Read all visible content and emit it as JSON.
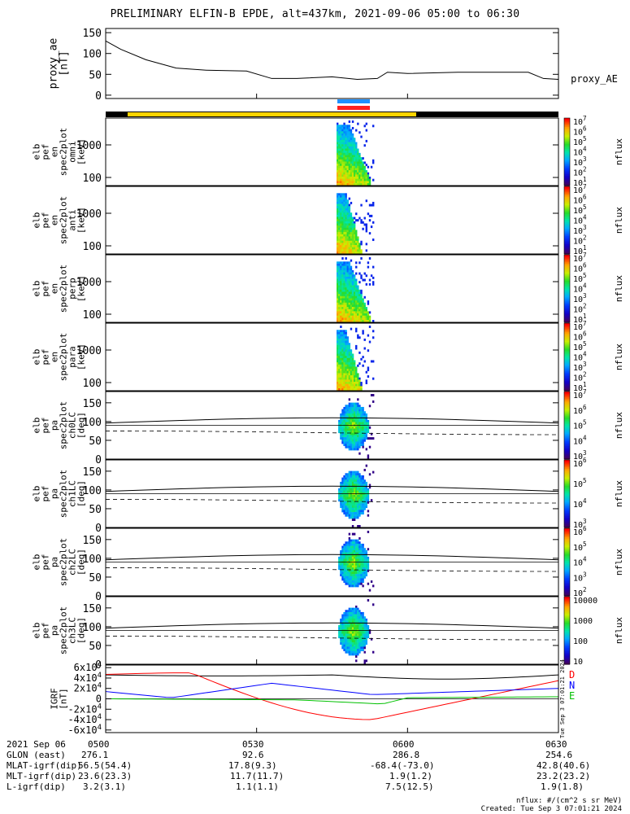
{
  "title": "PRELIMINARY ELFIN-B EPDE, alt=437km, 2021-09-06 05:00 to 06:30",
  "chart_data": [
    {
      "type": "line",
      "panel": "proxy_ae",
      "ylabel": [
        "proxy_ae",
        "[nT]"
      ],
      "yticks": [
        0,
        50,
        100,
        150
      ],
      "ylim": [
        -8,
        160
      ],
      "series_label": "proxy_AE",
      "x_minutes": [
        0,
        3,
        8,
        14,
        20,
        28,
        33,
        38,
        45,
        50,
        54,
        56,
        60,
        70,
        80,
        84,
        87,
        90
      ],
      "values": [
        130,
        110,
        85,
        65,
        60,
        58,
        40,
        40,
        44,
        38,
        40,
        55,
        52,
        55,
        55,
        55,
        40,
        38
      ]
    },
    {
      "type": "heatmap",
      "panel": "en_spec2plot_omni",
      "ylabel": [
        "elb",
        "pef",
        "en",
        "spec2plot",
        "omni",
        "[keV]"
      ],
      "yticks": [
        "100",
        "1000"
      ],
      "cbar_label": "nflux",
      "cbar_ticks": [
        "10^1",
        "10^2",
        "10^3",
        "10^4",
        "10^5",
        "10^6",
        "10^7"
      ]
    },
    {
      "type": "heatmap",
      "panel": "en_spec2plot_anti",
      "ylabel": [
        "elb",
        "pef",
        "en",
        "spec2plot",
        "anti",
        "[keV]"
      ],
      "yticks": [
        "100",
        "1000"
      ],
      "cbar_label": "nflux",
      "cbar_ticks": [
        "10^1",
        "10^2",
        "10^3",
        "10^4",
        "10^5",
        "10^6",
        "10^7"
      ]
    },
    {
      "type": "heatmap",
      "panel": "en_spec2plot_perp",
      "ylabel": [
        "elb",
        "pef",
        "en",
        "spec2plot",
        "perp",
        "[keV]"
      ],
      "yticks": [
        "100",
        "1000"
      ],
      "cbar_label": "nflux",
      "cbar_ticks": [
        "10^1",
        "10^2",
        "10^3",
        "10^4",
        "10^5",
        "10^6",
        "10^7"
      ]
    },
    {
      "type": "heatmap",
      "panel": "en_spec2plot_para",
      "ylabel": [
        "elb",
        "pef",
        "en",
        "spec2plot",
        "para",
        "[keV]"
      ],
      "yticks": [
        "100",
        "1000"
      ],
      "cbar_label": "nflux",
      "cbar_ticks": [
        "10^1",
        "10^2",
        "10^3",
        "10^4",
        "10^5",
        "10^6",
        "10^7"
      ]
    },
    {
      "type": "heatmap",
      "panel": "pa_spec2plot_ch0LC",
      "ylabel": [
        "elb",
        "pef",
        "pa",
        "spec2plot",
        "ch0LC",
        "[deg]"
      ],
      "yticks": [
        "0",
        "50",
        "100",
        "150"
      ],
      "cbar_label": "nflux",
      "cbar_ticks": [
        "10^3",
        "10^4",
        "10^5",
        "10^6",
        "10^7"
      ]
    },
    {
      "type": "heatmap",
      "panel": "pa_spec2plot_ch1LC",
      "ylabel": [
        "elb",
        "pef",
        "pa",
        "spec2plot",
        "ch1LC",
        "[deg]"
      ],
      "yticks": [
        "0",
        "50",
        "100",
        "150"
      ],
      "cbar_label": "nflux",
      "cbar_ticks": [
        "10^3",
        "10^4",
        "10^5",
        "10^6"
      ]
    },
    {
      "type": "heatmap",
      "panel": "pa_spec2plot_ch2LC",
      "ylabel": [
        "elb",
        "pef",
        "pa",
        "spec2plot",
        "ch2LC",
        "[deg]"
      ],
      "yticks": [
        "0",
        "50",
        "100",
        "150"
      ],
      "cbar_label": "nflux",
      "cbar_ticks": [
        "10^2",
        "10^3",
        "10^4",
        "10^5",
        "10^6"
      ]
    },
    {
      "type": "heatmap",
      "panel": "pa_spec2plot_ch3LC",
      "ylabel": [
        "elb",
        "pef",
        "pa",
        "spec2plot",
        "ch3LC",
        "[deg]"
      ],
      "yticks": [
        "0",
        "50",
        "100",
        "150"
      ],
      "cbar_label": "nflux",
      "cbar_ticks": [
        "10",
        "100",
        "1000",
        "10000"
      ]
    },
    {
      "type": "line",
      "panel": "IGRF",
      "ylabel": [
        "IGRF",
        "[nT]"
      ],
      "yticks": [
        "-6x10^4",
        "-4x10^4",
        "-2x10^4",
        "0",
        "2x10^4",
        "4x10^4",
        "6x10^4"
      ],
      "series": [
        {
          "name": "D",
          "color": "#ff0000"
        },
        {
          "name": "N",
          "color": "#0000ff"
        },
        {
          "name": "E",
          "color": "#00c000"
        }
      ]
    }
  ],
  "footer": {
    "rows": [
      {
        "label": "2021 Sep 06",
        "values": [
          "0500",
          "0530",
          "0600",
          "0630"
        ]
      },
      {
        "label": "GLON (east)",
        "values": [
          "276.1",
          "92.6",
          "286.8",
          "254.6"
        ]
      },
      {
        "label": "MLAT-igrf(dip)",
        "values": [
          "56.5(54.4)",
          "17.8(9.3)",
          "-68.4(-73.0)",
          "42.8(40.6)"
        ]
      },
      {
        "label": "MLT-igrf(dip)",
        "values": [
          "23.6(23.3)",
          "11.7(11.7)",
          "1.9(1.2)",
          "23.2(23.2)"
        ]
      },
      {
        "label": "L-igrf(dip)",
        "values": [
          "3.2(3.1)",
          "1.1(1.1)",
          "7.5(12.5)",
          "1.9(1.8)"
        ]
      }
    ],
    "units_note": "nflux: #/(cm^2 s sr MeV)",
    "created_note": "Created: Tue Sep  3 07:01:21 2024",
    "side_stamp": "Tue Sep 3 07:01:21 2024"
  },
  "colors": {
    "d_line": "#ff0000",
    "n_line": "#0000ff",
    "e_line": "#00c000",
    "yellow_bar": "#ffd400",
    "blue_bar": "#1e90ff",
    "red_bar": "#ff2020"
  }
}
